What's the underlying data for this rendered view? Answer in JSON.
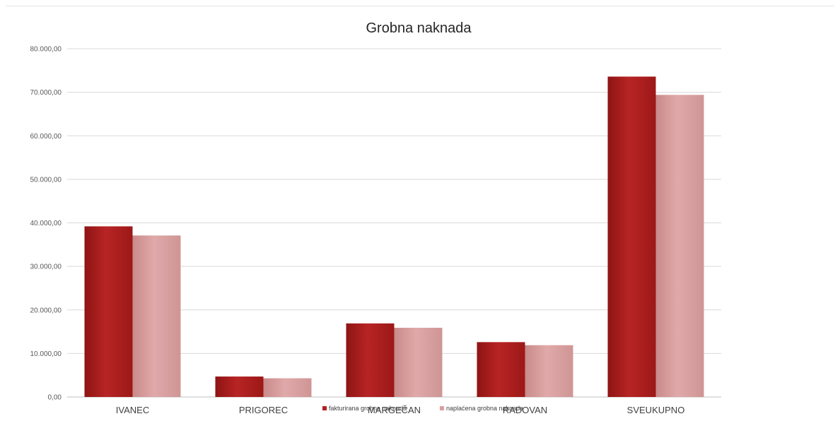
{
  "chart_data": {
    "type": "bar",
    "title": "Grobna naknada",
    "categories": [
      "IVANEC",
      "PRIGOREC",
      "MARGEČAN",
      "RADOVAN",
      "SVEUKUPNO"
    ],
    "series": [
      {
        "name": "fakturirana grobna naknada",
        "color": "#b22222",
        "values": [
          39200,
          4700,
          16900,
          12600,
          73600
        ]
      },
      {
        "name": "naplaćena grobna naknada",
        "color": "#d9a0a0",
        "values": [
          37100,
          4300,
          15900,
          11900,
          69400
        ]
      }
    ],
    "ylim": [
      0,
      80000
    ],
    "yticks": [
      "0,00",
      "10.000,00",
      "20.000,00",
      "30.000,00",
      "40.000,00",
      "50.000,00",
      "60.000,00",
      "70.000,00",
      "80.000,00"
    ],
    "legend_position": "bottom",
    "grid": true
  }
}
